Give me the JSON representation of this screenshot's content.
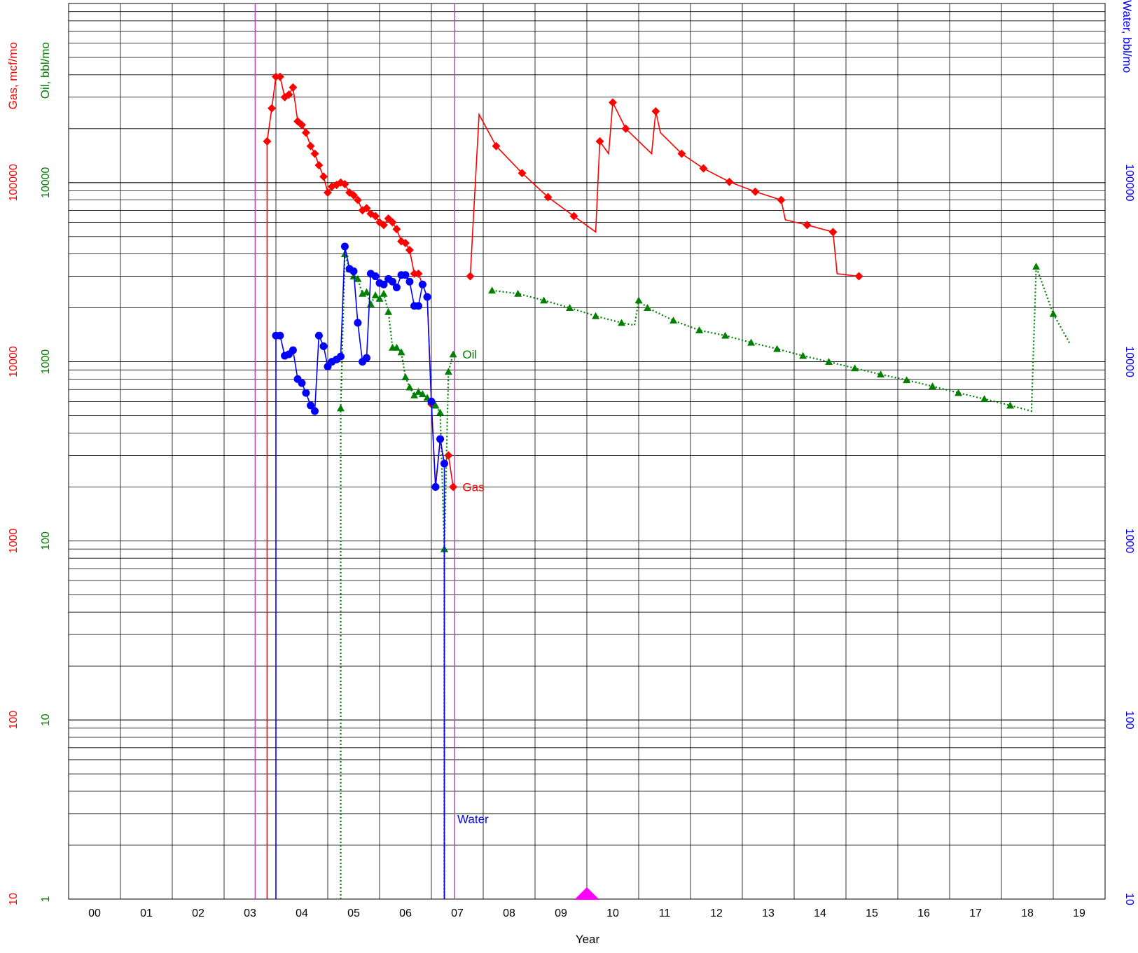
{
  "chart_data": {
    "type": "line",
    "xlabel": "Year",
    "x_tick_labels": [
      "00",
      "01",
      "02",
      "03",
      "04",
      "05",
      "06",
      "07",
      "08",
      "09",
      "10",
      "11",
      "12",
      "13",
      "14",
      "15",
      "16",
      "17",
      "18",
      "19"
    ],
    "xlim": [
      2000.0,
      2020.0
    ],
    "log_scale": true,
    "grid": true,
    "axes": {
      "gas": {
        "label": "Gas, mcf/mo",
        "color": "#ff0000",
        "ticks": [
          "10",
          "100",
          "1000",
          "10000",
          "100000"
        ],
        "ylim": [
          10,
          1000000
        ]
      },
      "oil": {
        "label": "Oil, bbl/mo",
        "color": "#008000",
        "ticks": [
          "1",
          "10",
          "100",
          "1000",
          "10000"
        ],
        "ylim": [
          1,
          100000
        ]
      },
      "water": {
        "label": "Water, bbl/mo",
        "color": "#0000ff",
        "ticks": [
          "10",
          "100",
          "1000",
          "10000",
          "100000"
        ],
        "ylim": [
          10,
          1000000
        ]
      }
    },
    "vertical_markers": [
      {
        "x": 2003.6,
        "color": "#c040c0"
      },
      {
        "x": 2007.45,
        "color": "#c040c0"
      }
    ],
    "event_marker": {
      "x": 2010.0,
      "color": "#ff00ff"
    },
    "series": [
      {
        "name": "Gas",
        "axis": "gas",
        "color": "#ff0000",
        "marker": "diamond",
        "style": "solid",
        "label_at": [
          2007.6,
          2000
        ],
        "points": [
          [
            2003.83,
            10
          ],
          [
            2003.83,
            170000
          ],
          [
            2003.92,
            260000
          ],
          [
            2004.0,
            390000
          ],
          [
            2004.08,
            390000
          ],
          [
            2004.17,
            300000
          ],
          [
            2004.25,
            310000
          ],
          [
            2004.33,
            340000
          ],
          [
            2004.42,
            220000
          ],
          [
            2004.5,
            210000
          ],
          [
            2004.58,
            190000
          ],
          [
            2004.67,
            160000
          ],
          [
            2004.75,
            145000
          ],
          [
            2004.83,
            125000
          ],
          [
            2004.92,
            108000
          ],
          [
            2005.0,
            88000
          ],
          [
            2005.08,
            95000
          ],
          [
            2005.17,
            97000
          ],
          [
            2005.25,
            100000
          ],
          [
            2005.33,
            98000
          ],
          [
            2005.42,
            88000
          ],
          [
            2005.5,
            85000
          ],
          [
            2005.58,
            80000
          ],
          [
            2005.67,
            70000
          ],
          [
            2005.75,
            72000
          ],
          [
            2005.83,
            67000
          ],
          [
            2005.92,
            65000
          ],
          [
            2006.0,
            60000
          ],
          [
            2006.08,
            58000
          ],
          [
            2006.17,
            63000
          ],
          [
            2006.25,
            60000
          ],
          [
            2006.33,
            55000
          ],
          [
            2006.42,
            47000
          ],
          [
            2006.5,
            46000
          ],
          [
            2006.58,
            42000
          ],
          [
            2006.67,
            31000
          ],
          [
            2006.75,
            31000
          ],
          [
            2006.83,
            27000
          ],
          [
            2006.92,
            23000
          ],
          [
            2007.0,
            5800
          ],
          [
            2007.08,
            2000
          ],
          [
            2007.17,
            3700
          ],
          [
            2007.25,
            2700
          ],
          [
            2007.33,
            3000
          ],
          [
            2007.42,
            2000
          ]
        ]
      },
      {
        "name": "",
        "axis": "gas",
        "color": "#ff0000",
        "marker": "diamond",
        "style": "solid",
        "points": [
          [
            2007.75,
            30000
          ],
          [
            2007.92,
            240000
          ],
          [
            2008.25,
            160000
          ],
          [
            2008.75,
            113000
          ],
          [
            2009.25,
            83000
          ],
          [
            2009.75,
            65000
          ],
          [
            2010.17,
            53000
          ],
          [
            2010.25,
            170000
          ],
          [
            2010.42,
            145000
          ],
          [
            2010.5,
            280000
          ],
          [
            2010.75,
            200000
          ],
          [
            2011.25,
            145000
          ],
          [
            2011.33,
            250000
          ],
          [
            2011.42,
            190000
          ],
          [
            2011.83,
            145000
          ],
          [
            2012.25,
            120000
          ],
          [
            2012.75,
            101000
          ],
          [
            2013.25,
            89000
          ],
          [
            2013.75,
            80000
          ],
          [
            2013.83,
            62000
          ],
          [
            2014.25,
            58000
          ],
          [
            2014.75,
            53000
          ],
          [
            2014.83,
            31000
          ],
          [
            2015.25,
            30000
          ]
        ],
        "markers_on": [
          0,
          2,
          3,
          4,
          5,
          7,
          9,
          10,
          12,
          14,
          15,
          16,
          17,
          18,
          20,
          21,
          23
        ]
      },
      {
        "name": "Oil",
        "axis": "oil",
        "color": "#008000",
        "marker": "triangle",
        "style": "dotted",
        "label_at": [
          2007.6,
          1100
        ],
        "points": [
          [
            2005.25,
            1
          ],
          [
            2005.25,
            550
          ],
          [
            2005.33,
            4000
          ],
          [
            2005.42,
            3300
          ],
          [
            2005.5,
            3000
          ],
          [
            2005.58,
            2900
          ],
          [
            2005.67,
            2400
          ],
          [
            2005.75,
            2450
          ],
          [
            2005.83,
            2100
          ],
          [
            2005.92,
            2350
          ],
          [
            2006.0,
            2250
          ],
          [
            2006.08,
            2400
          ],
          [
            2006.17,
            1900
          ],
          [
            2006.25,
            1200
          ],
          [
            2006.33,
            1200
          ],
          [
            2006.42,
            1130
          ],
          [
            2006.5,
            820
          ],
          [
            2006.58,
            720
          ],
          [
            2006.67,
            650
          ],
          [
            2006.75,
            680
          ],
          [
            2006.83,
            660
          ],
          [
            2006.92,
            630
          ],
          [
            2007.0,
            600
          ],
          [
            2007.08,
            570
          ],
          [
            2007.17,
            520
          ],
          [
            2007.25,
            90
          ],
          [
            2007.25,
            1
          ],
          [
            2007.25,
            90
          ],
          [
            2007.33,
            880
          ],
          [
            2007.42,
            1100
          ]
        ]
      },
      {
        "name": "",
        "axis": "oil",
        "color": "#008000",
        "marker": "triangle",
        "style": "dotted",
        "points": [
          [
            2008.17,
            2500
          ],
          [
            2008.67,
            2400
          ],
          [
            2009.17,
            2200
          ],
          [
            2009.67,
            2000
          ],
          [
            2010.17,
            1800
          ],
          [
            2010.67,
            1650
          ],
          [
            2010.92,
            1600
          ],
          [
            2011.0,
            2200
          ],
          [
            2011.17,
            2000
          ],
          [
            2011.67,
            1700
          ],
          [
            2012.17,
            1500
          ],
          [
            2012.67,
            1400
          ],
          [
            2013.17,
            1280
          ],
          [
            2013.67,
            1180
          ],
          [
            2014.17,
            1080
          ],
          [
            2014.67,
            1000
          ],
          [
            2015.17,
            920
          ],
          [
            2015.67,
            850
          ],
          [
            2016.17,
            790
          ],
          [
            2016.67,
            730
          ],
          [
            2017.17,
            670
          ],
          [
            2017.67,
            620
          ],
          [
            2018.17,
            570
          ],
          [
            2018.58,
            530
          ],
          [
            2018.67,
            3400
          ],
          [
            2019.0,
            1850
          ],
          [
            2019.33,
            1250
          ]
        ],
        "markers_on": [
          0,
          1,
          2,
          3,
          4,
          5,
          7,
          8,
          9,
          10,
          11,
          12,
          13,
          14,
          15,
          16,
          17,
          18,
          19,
          20,
          21,
          22,
          24,
          25
        ]
      },
      {
        "name": "Water",
        "axis": "water",
        "color": "#0000ff",
        "marker": "circle",
        "style": "solid",
        "label_at": [
          2007.5,
          28
        ],
        "points": [
          [
            2004.0,
            10
          ],
          [
            2004.0,
            14000
          ],
          [
            2004.08,
            14000
          ],
          [
            2004.17,
            10800
          ],
          [
            2004.25,
            11000
          ],
          [
            2004.33,
            11600
          ],
          [
            2004.42,
            8000
          ],
          [
            2004.5,
            7600
          ],
          [
            2004.58,
            6700
          ],
          [
            2004.67,
            5700
          ],
          [
            2004.75,
            5300
          ],
          [
            2004.83,
            14000
          ],
          [
            2004.92,
            12200
          ],
          [
            2005.0,
            9400
          ],
          [
            2005.08,
            10000
          ],
          [
            2005.17,
            10300
          ],
          [
            2005.25,
            10700
          ],
          [
            2005.33,
            44000
          ],
          [
            2005.42,
            33000
          ],
          [
            2005.5,
            32000
          ],
          [
            2005.58,
            16500
          ],
          [
            2005.67,
            10000
          ],
          [
            2005.75,
            10500
          ],
          [
            2005.83,
            31000
          ],
          [
            2005.92,
            30000
          ],
          [
            2006.0,
            27500
          ],
          [
            2006.08,
            27000
          ],
          [
            2006.17,
            29000
          ],
          [
            2006.25,
            28000
          ],
          [
            2006.33,
            26000
          ],
          [
            2006.42,
            30500
          ],
          [
            2006.5,
            30500
          ],
          [
            2006.58,
            28000
          ],
          [
            2006.67,
            20500
          ],
          [
            2006.75,
            20500
          ],
          [
            2006.83,
            27000
          ],
          [
            2006.92,
            23000
          ],
          [
            2007.0,
            6000
          ],
          [
            2007.08,
            2000
          ],
          [
            2007.17,
            3700
          ],
          [
            2007.25,
            2700
          ],
          [
            2007.25,
            10
          ]
        ]
      }
    ]
  }
}
